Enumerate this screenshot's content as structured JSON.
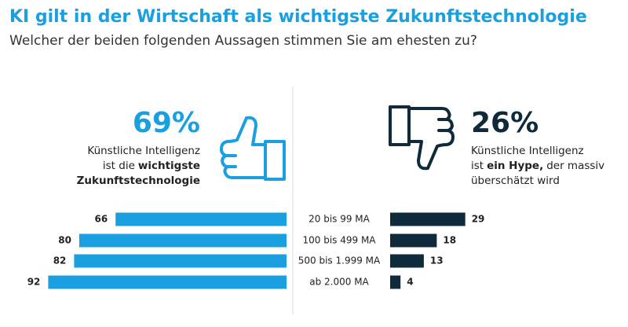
{
  "chart_data": {
    "type": "diverging-bar",
    "title": "KI gilt in der Wirtschaft als wichtigste Zukunftstechnologie",
    "subtitle": "Welcher der beiden folgenden Aussagen stimmen Sie am ehesten zu?",
    "categories": [
      "20 bis 99 MA",
      "100 bis 499 MA",
      "500 bis 1.999 MA",
      "ab 2.000 MA"
    ],
    "xlim": [
      0,
      100
    ],
    "series": [
      {
        "side": "left",
        "color": "#1a9fe0",
        "total": 69,
        "total_label": "69%",
        "statement_lines": [
          [
            {
              "text": "Künstliche Intelligenz",
              "bold": false
            }
          ],
          [
            {
              "text": "ist die",
              "bold": false
            },
            {
              "text": "wichtigste",
              "bold": true
            }
          ],
          [
            {
              "text": "Zukunftstechnologie",
              "bold": true
            }
          ]
        ],
        "values": [
          66,
          80,
          82,
          92
        ]
      },
      {
        "side": "right",
        "color": "#0f2a3a",
        "total": 26,
        "total_label": "26%",
        "statement_lines": [
          [
            {
              "text": "Künstliche Intelligenz",
              "bold": false
            }
          ],
          [
            {
              "text": "ist",
              "bold": false
            },
            {
              "text": "ein Hype,",
              "bold": true
            },
            {
              "text": "der massiv",
              "bold": false
            }
          ],
          [
            {
              "text": "überschätzt wird",
              "bold": false
            }
          ]
        ],
        "values": [
          29,
          18,
          13,
          4
        ]
      }
    ]
  }
}
